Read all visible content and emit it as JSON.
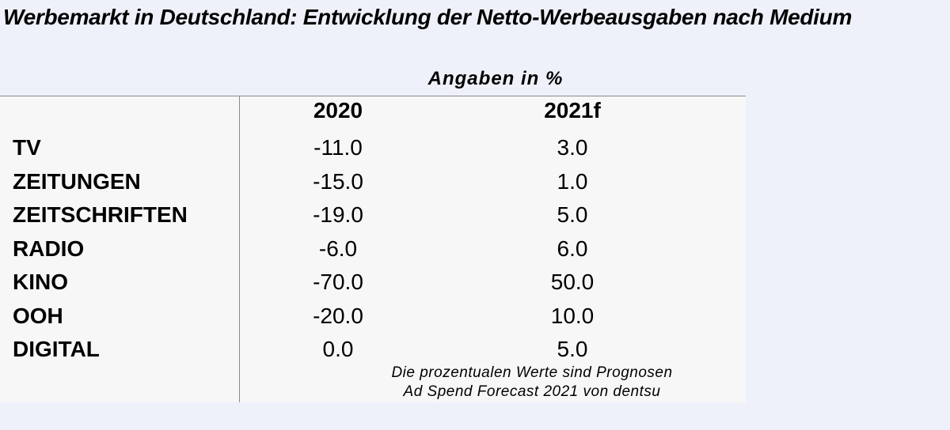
{
  "chart_data": {
    "type": "table",
    "title": "Werbemarkt in Deutschland: Entwicklung der Netto-Werbeausgaben nach Medium",
    "unit_label": "Angaben in %",
    "columns": [
      "2020",
      "2021f"
    ],
    "rows": [
      {
        "category": "TV",
        "values": [
          "-11.0",
          "3.0"
        ]
      },
      {
        "category": "ZEITUNGEN",
        "values": [
          "-15.0",
          "1.0"
        ]
      },
      {
        "category": "ZEITSCHRIFTEN",
        "values": [
          "-19.0",
          "5.0"
        ]
      },
      {
        "category": "RADIO",
        "values": [
          "-6.0",
          "6.0"
        ]
      },
      {
        "category": "KINO",
        "values": [
          "-70.0",
          "50.0"
        ]
      },
      {
        "category": "OOH",
        "values": [
          "-20.0",
          "10.0"
        ]
      },
      {
        "category": "DIGITAL",
        "values": [
          "0.0",
          "5.0"
        ]
      }
    ],
    "notes": [
      "Die prozentualen Werte sind Prognosen",
      "Ad Spend Forecast 2021 von dentsu"
    ]
  }
}
